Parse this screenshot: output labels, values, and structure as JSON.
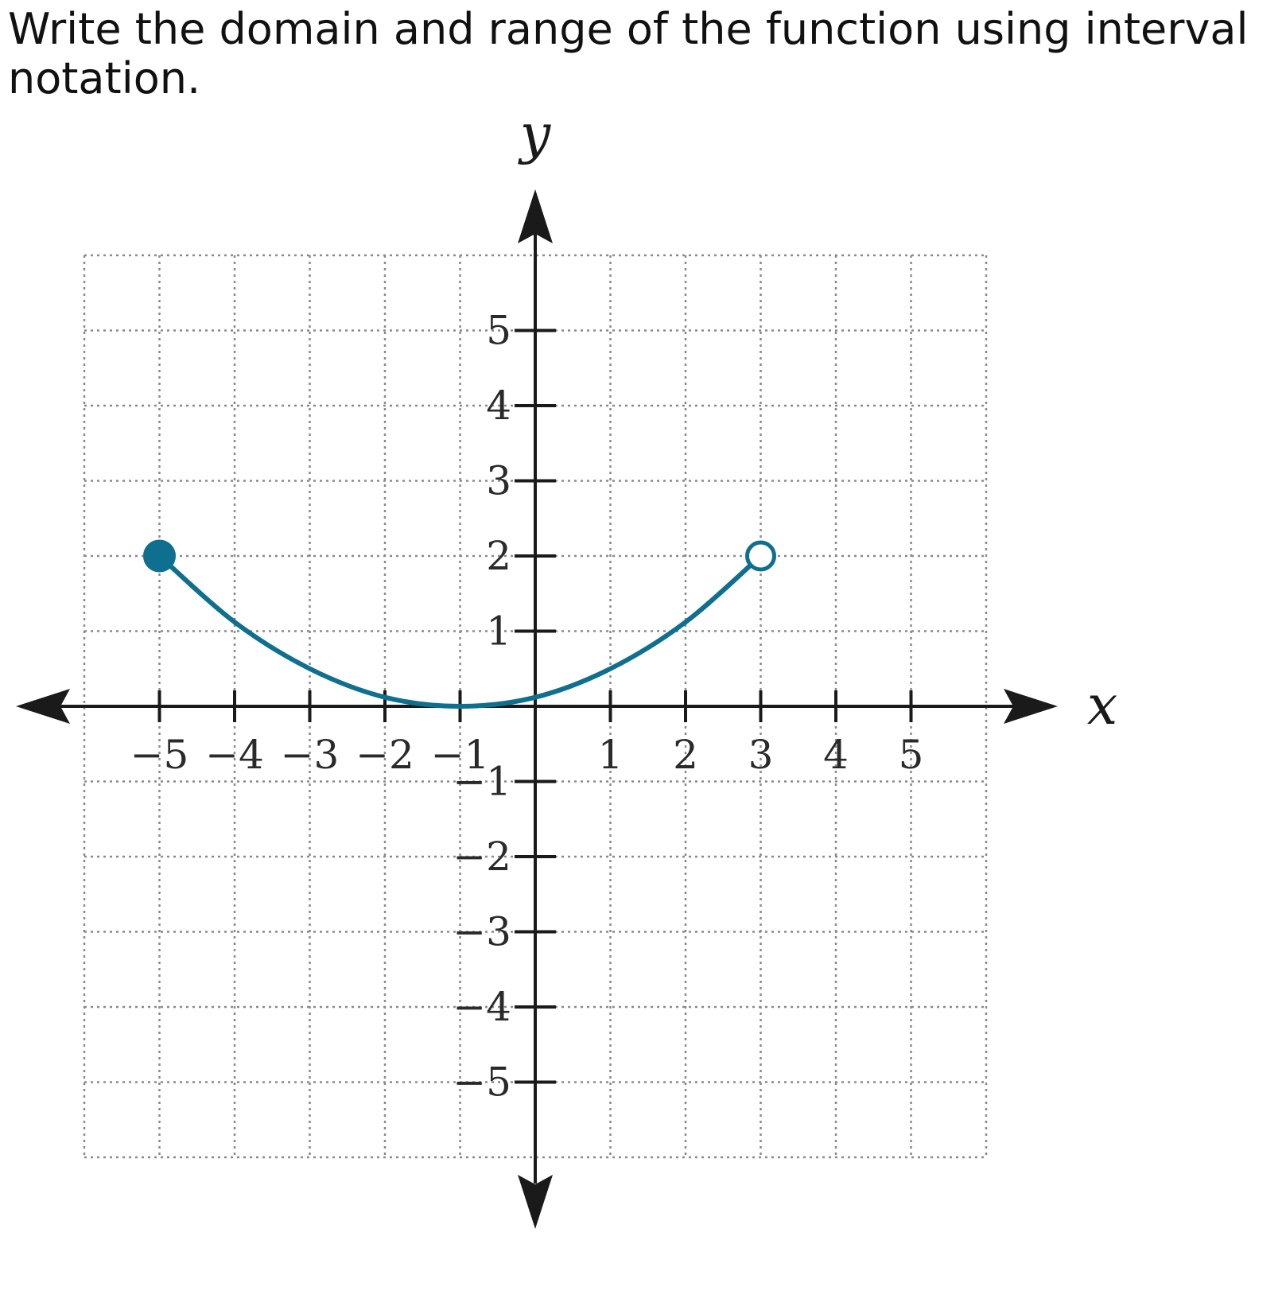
{
  "question": {
    "text": "Write the domain and range of the function using interval notation."
  },
  "chart_data": {
    "type": "line",
    "xlabel": "x",
    "ylabel": "y",
    "xlim": [
      -6,
      6
    ],
    "ylim": [
      -6,
      6
    ],
    "x_ticks": [
      {
        "value": -5,
        "label": "−5"
      },
      {
        "value": -4,
        "label": "−4"
      },
      {
        "value": -3,
        "label": "−3"
      },
      {
        "value": -2,
        "label": "−2"
      },
      {
        "value": -1,
        "label": "−1"
      },
      {
        "value": 1,
        "label": "1"
      },
      {
        "value": 2,
        "label": "2"
      },
      {
        "value": 3,
        "label": "3"
      },
      {
        "value": 4,
        "label": "4"
      },
      {
        "value": 5,
        "label": "5"
      }
    ],
    "y_ticks": [
      {
        "value": 5,
        "label": "5"
      },
      {
        "value": 4,
        "label": "4"
      },
      {
        "value": 3,
        "label": "3"
      },
      {
        "value": 2,
        "label": "2"
      },
      {
        "value": 1,
        "label": "1"
      },
      {
        "value": -1,
        "label": "−1"
      },
      {
        "value": -2,
        "label": "−2"
      },
      {
        "value": -3,
        "label": "−3"
      },
      {
        "value": -4,
        "label": "−4"
      },
      {
        "value": -5,
        "label": "−5"
      }
    ],
    "grid": true,
    "series": [
      {
        "color": "#0f6f8f",
        "x": [
          -5,
          -4,
          -3,
          -2,
          -1,
          0,
          1,
          2,
          3
        ],
        "y": [
          2,
          1.12,
          0.5,
          0.12,
          0,
          0.12,
          0.5,
          1.12,
          2
        ],
        "endpoints": [
          {
            "x": -5,
            "y": 2,
            "closed": true
          },
          {
            "x": 3,
            "y": 2,
            "closed": false
          }
        ]
      }
    ]
  }
}
